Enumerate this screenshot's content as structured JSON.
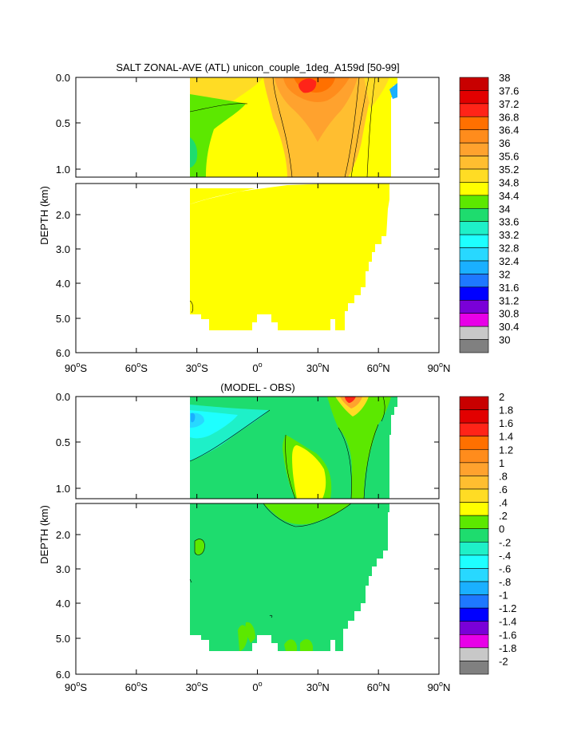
{
  "chart_data": [
    {
      "type": "heatmap",
      "title": "SALT ZONAL-AVE (ATL) unicon_couple_1deg_A159d [50-99]",
      "ylabel": "DEPTH (km)",
      "xlabel": "",
      "upper_yticks": [
        "0.0",
        "0.5",
        "1.0"
      ],
      "lower_yticks": [
        "2.0",
        "3.0",
        "4.0",
        "5.0",
        "6.0"
      ],
      "xticks": [
        {
          "deg": "90",
          "hemi": "S"
        },
        {
          "deg": "60",
          "hemi": "S"
        },
        {
          "deg": "30",
          "hemi": "S"
        },
        {
          "deg": "0",
          "hemi": ""
        },
        {
          "deg": "30",
          "hemi": "N"
        },
        {
          "deg": "60",
          "hemi": "N"
        },
        {
          "deg": "90",
          "hemi": "N"
        }
      ],
      "xlim": [
        -90,
        90
      ],
      "colorbar": {
        "labels": [
          "38",
          "37.6",
          "37.2",
          "36.8",
          "36.4",
          "36",
          "35.6",
          "35.2",
          "34.8",
          "34.4",
          "34",
          "33.6",
          "33.2",
          "32.8",
          "32.4",
          "32",
          "31.6",
          "31.2",
          "30.8",
          "30.4",
          "30"
        ],
        "colors": [
          "#c80000",
          "#e20000",
          "#ff2418",
          "#ff7000",
          "#ff8c1c",
          "#ffa22e",
          "#ffbe30",
          "#ffdc24",
          "#ffff00",
          "#5ce800",
          "#1edc6e",
          "#1ef0c8",
          "#1effff",
          "#28d8ff",
          "#1ab0ff",
          "#1e78ff",
          "#0000ff",
          "#7a00d8",
          "#e800e8",
          "#c8c8c8",
          "#808080"
        ]
      },
      "fields": {
        "base_color": "#ffff00",
        "land_color": "#ffffff"
      }
    },
    {
      "type": "heatmap",
      "title": "(MODEL - OBS)",
      "ylabel": "DEPTH (km)",
      "xlabel": "",
      "upper_yticks": [
        "0.0",
        "0.5",
        "1.0"
      ],
      "lower_yticks": [
        "2.0",
        "3.0",
        "4.0",
        "5.0",
        "6.0"
      ],
      "xticks": [
        {
          "deg": "90",
          "hemi": "S"
        },
        {
          "deg": "60",
          "hemi": "S"
        },
        {
          "deg": "30",
          "hemi": "S"
        },
        {
          "deg": "0",
          "hemi": ""
        },
        {
          "deg": "30",
          "hemi": "N"
        },
        {
          "deg": "60",
          "hemi": "N"
        },
        {
          "deg": "90",
          "hemi": "N"
        }
      ],
      "xlim": [
        -90,
        90
      ],
      "colorbar": {
        "labels": [
          "2",
          "1.8",
          "1.6",
          "1.4",
          "1.2",
          "1",
          ".8",
          ".6",
          ".4",
          ".2",
          "0",
          "-.2",
          "-.4",
          "-.6",
          "-.8",
          "-1",
          "-1.2",
          "-1.4",
          "-1.6",
          "-1.8",
          "-2"
        ],
        "colors": [
          "#c80000",
          "#e20000",
          "#ff2418",
          "#ff7000",
          "#ff8c1c",
          "#ffa22e",
          "#ffbe30",
          "#ffdc24",
          "#ffff00",
          "#5ce800",
          "#1edc6e",
          "#1ef0c8",
          "#1effff",
          "#28d8ff",
          "#1ab0ff",
          "#1e78ff",
          "#0000ff",
          "#7a00d8",
          "#e800e8",
          "#c8c8c8",
          "#808080"
        ]
      },
      "fields": {
        "base_color": "#1edc6e",
        "land_color": "#ffffff"
      }
    }
  ]
}
